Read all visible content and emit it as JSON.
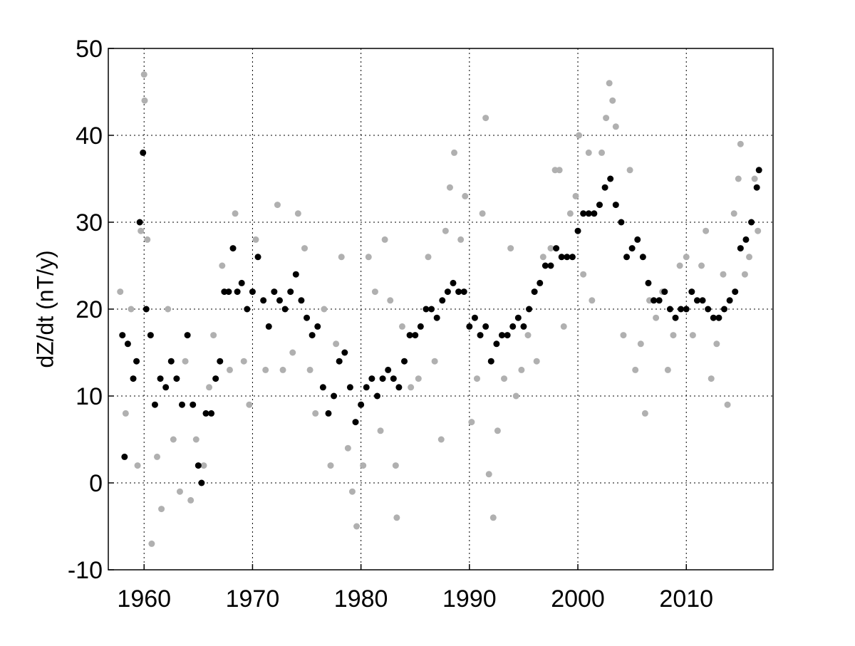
{
  "chart_data": {
    "type": "scatter",
    "y_label": "dZ/dt (nT/y)",
    "xlim": [
      1956.7,
      2018.0
    ],
    "ylim": [
      -10,
      50
    ],
    "xticks": [
      1960,
      1970,
      1980,
      1990,
      2000,
      2010
    ],
    "yticks": [
      -10,
      0,
      10,
      20,
      30,
      40,
      50
    ],
    "grid": true,
    "series": [
      {
        "color": "#b0b0b0",
        "x": [
          1957.8,
          1958.3,
          1958.8,
          1959.4,
          1959.7,
          1960.0,
          1960.05,
          1960.3,
          1960.7,
          1961.2,
          1961.6,
          1962.2,
          1962.7,
          1963.3,
          1963.8,
          1964.3,
          1964.8,
          1965.5,
          1966.0,
          1966.4,
          1967.2,
          1967.9,
          1968.4,
          1969.2,
          1969.7,
          1970.3,
          1971.2,
          1972.3,
          1972.8,
          1973.7,
          1974.2,
          1974.8,
          1975.3,
          1975.8,
          1976.6,
          1977.2,
          1977.7,
          1978.2,
          1978.8,
          1979.2,
          1979.6,
          1980.2,
          1980.7,
          1981.3,
          1981.8,
          1982.2,
          1982.7,
          1983.2,
          1983.3,
          1983.8,
          1984.6,
          1985.3,
          1986.2,
          1986.8,
          1987.4,
          1987.8,
          1988.2,
          1988.6,
          1989.2,
          1989.6,
          1990.2,
          1990.7,
          1991.2,
          1991.5,
          1991.8,
          1992.2,
          1992.6,
          1993.2,
          1993.8,
          1994.3,
          1994.8,
          1995.4,
          1996.2,
          1996.8,
          1997.5,
          1997.9,
          1998.3,
          1998.7,
          1999.3,
          1999.8,
          2000.1,
          2000.5,
          2001.0,
          2001.3,
          2002.2,
          2002.6,
          2002.9,
          2003.2,
          2003.5,
          2004.2,
          2004.8,
          2005.3,
          2005.8,
          2006.2,
          2006.6,
          2007.2,
          2007.8,
          2008.3,
          2008.8,
          2009.4,
          2010.0,
          2010.6,
          2011.4,
          2011.8,
          2012.3,
          2012.8,
          2013.4,
          2013.8,
          2014.4,
          2014.8,
          2015.0,
          2015.4,
          2015.8,
          2016.3,
          2016.6
        ],
        "values": [
          22,
          8,
          20,
          2,
          29,
          47,
          44,
          28,
          -7,
          3,
          -3,
          20,
          5,
          -1,
          14,
          -2,
          5,
          2,
          11,
          17,
          25,
          13,
          31,
          14,
          9,
          28,
          13,
          32,
          13,
          15,
          31,
          27,
          13,
          8,
          20,
          2,
          16,
          26,
          4,
          -1,
          -5,
          2,
          26,
          22,
          6,
          28,
          21,
          2,
          -4,
          18,
          11,
          12,
          26,
          14,
          5,
          29,
          34,
          38,
          28,
          33,
          7,
          12,
          31,
          42,
          1,
          -4,
          6,
          12,
          27,
          10,
          13,
          17,
          14,
          26,
          27,
          36,
          36,
          18,
          31,
          33,
          40,
          24,
          38,
          21,
          38,
          42,
          46,
          44,
          41,
          17,
          36,
          13,
          16,
          8,
          21,
          19,
          22,
          13,
          17,
          25,
          26,
          17,
          25,
          29,
          12,
          16,
          24,
          9,
          31,
          35,
          39,
          24,
          26,
          35,
          29
        ]
      },
      {
        "color": "#000000",
        "x": [
          1958.0,
          1958.2,
          1958.5,
          1959.0,
          1959.3,
          1959.6,
          1959.9,
          1960.2,
          1960.6,
          1961.0,
          1961.5,
          1962.0,
          1962.5,
          1963.0,
          1963.5,
          1964.0,
          1964.5,
          1965.0,
          1965.3,
          1965.7,
          1966.2,
          1966.6,
          1967.0,
          1967.4,
          1967.8,
          1968.2,
          1968.6,
          1969.0,
          1969.5,
          1970.0,
          1970.5,
          1971.0,
          1971.5,
          1972.0,
          1972.5,
          1973.0,
          1973.5,
          1974.0,
          1974.5,
          1975.0,
          1975.5,
          1976.0,
          1976.5,
          1977.0,
          1977.5,
          1978.0,
          1978.5,
          1979.0,
          1979.5,
          1980.0,
          1980.5,
          1981.0,
          1981.5,
          1982.0,
          1982.5,
          1983.0,
          1983.5,
          1984.0,
          1984.5,
          1985.0,
          1985.5,
          1986.0,
          1986.5,
          1987.0,
          1987.5,
          1988.0,
          1988.5,
          1989.0,
          1989.5,
          1990.0,
          1990.5,
          1991.0,
          1991.5,
          1992.0,
          1992.5,
          1993.0,
          1993.5,
          1994.0,
          1994.5,
          1995.0,
          1995.5,
          1996.0,
          1996.5,
          1997.0,
          1997.5,
          1998.0,
          1998.5,
          1999.0,
          1999.5,
          2000.0,
          2000.5,
          2001.0,
          2001.5,
          2002.0,
          2002.5,
          2003.0,
          2003.5,
          2004.0,
          2004.5,
          2005.0,
          2005.5,
          2006.0,
          2006.5,
          2007.0,
          2007.5,
          2008.0,
          2008.5,
          2009.0,
          2009.5,
          2010.0,
          2010.5,
          2011.0,
          2011.5,
          2012.0,
          2012.5,
          2013.0,
          2013.5,
          2014.0,
          2014.5,
          2015.0,
          2015.5,
          2016.0,
          2016.5,
          2016.7
        ],
        "values": [
          17,
          3,
          16,
          12,
          14,
          30,
          38,
          20,
          17,
          9,
          12,
          11,
          14,
          12,
          9,
          17,
          9,
          2,
          0,
          8,
          8,
          12,
          14,
          22,
          22,
          27,
          22,
          23,
          20,
          22,
          26,
          21,
          18,
          22,
          21,
          20,
          22,
          24,
          21,
          19,
          17,
          18,
          11,
          8,
          10,
          14,
          15,
          11,
          7,
          9,
          11,
          12,
          10,
          12,
          13,
          12,
          11,
          14,
          17,
          17,
          18,
          20,
          20,
          19,
          21,
          22,
          23,
          22,
          22,
          18,
          19,
          17,
          18,
          14,
          16,
          17,
          17,
          18,
          19,
          18,
          20,
          22,
          23,
          25,
          25,
          27,
          26,
          26,
          26,
          29,
          31,
          31,
          31,
          32,
          34,
          35,
          32,
          30,
          26,
          27,
          28,
          26,
          23,
          21,
          21,
          22,
          20,
          19,
          20,
          20,
          22,
          21,
          21,
          20,
          19,
          19,
          20,
          21,
          22,
          27,
          28,
          30,
          34,
          36
        ]
      }
    ]
  }
}
